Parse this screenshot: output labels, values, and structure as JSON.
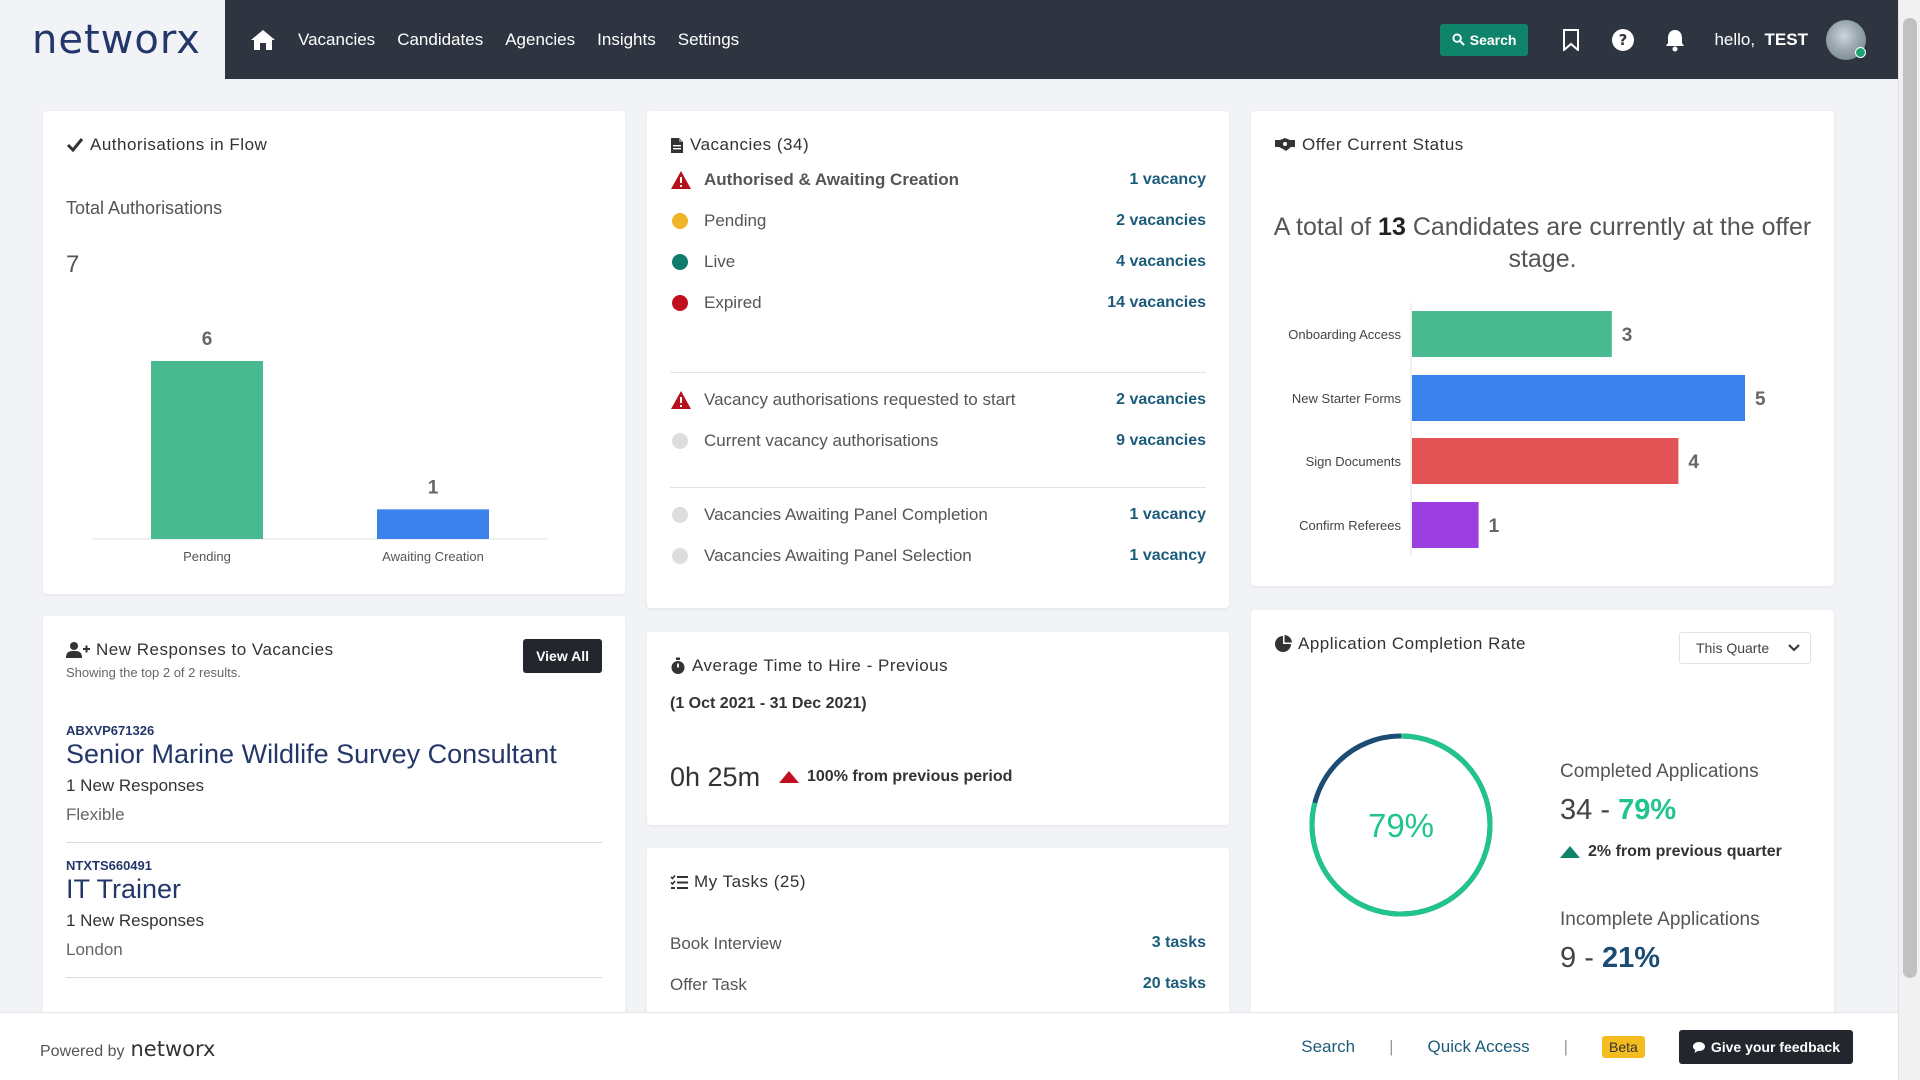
{
  "app": {
    "logo": "networx"
  },
  "nav": {
    "home_icon": "home-icon",
    "items": [
      "Vacancies",
      "Candidates",
      "Agencies",
      "Insights",
      "Settings"
    ]
  },
  "header": {
    "search_label": "Search",
    "greeting": "hello,",
    "user": "TEST"
  },
  "authorisations": {
    "title": "Authorisations in Flow",
    "total_label": "Total Authorisations",
    "total_value": "7",
    "chart_data": {
      "type": "bar",
      "categories": [
        "Pending",
        "Awaiting Creation"
      ],
      "values": [
        6,
        1
      ],
      "colors": [
        "#49b990",
        "#3b82ec"
      ],
      "ylim": [
        0,
        6.5
      ]
    }
  },
  "vacancies": {
    "title": "Vacancies (34)",
    "rows": [
      {
        "label": "Authorised & Awaiting Creation",
        "value": "1 vacancy",
        "icon": "warning-icon",
        "bold": true
      },
      {
        "label": "Pending",
        "value": "2 vacancies",
        "color": "#f0b429"
      },
      {
        "label": "Live",
        "value": "4 vacancies",
        "color": "#0f7b6c"
      },
      {
        "label": "Expired",
        "value": "14 vacancies",
        "color": "#c0101f"
      },
      {
        "label": "Vacancy authorisations requested to start",
        "value": "2 vacancies",
        "icon": "warning-icon"
      },
      {
        "label": "Current vacancy authorisations",
        "value": "9 vacancies",
        "color": "#dddddd"
      },
      {
        "label": "Vacancies Awaiting Panel Completion",
        "value": "1 vacancy",
        "color": "#dddddd"
      },
      {
        "label": "Vacancies Awaiting Panel Selection",
        "value": "1 vacancy",
        "color": "#dddddd"
      }
    ]
  },
  "offer": {
    "title": "Offer Current Status",
    "summary_prefix": "A total of",
    "summary_count": "13",
    "summary_suffix": "Candidates are currently at the offer stage.",
    "chart_data": {
      "type": "bar",
      "orientation": "horizontal",
      "categories": [
        "Onboarding Access",
        "New Starter Forms",
        "Sign Documents",
        "Confirm Referees"
      ],
      "values": [
        3,
        5,
        4,
        1
      ],
      "colors": [
        "#49b990",
        "#3b82ec",
        "#e35355",
        "#9b3fe0"
      ],
      "xlim": [
        0,
        5
      ]
    }
  },
  "responses": {
    "title": "New Responses to Vacancies",
    "subtitle": "Showing the top 2 of 2 results.",
    "view_all": "View All",
    "items": [
      {
        "ref": "ABXVP671326",
        "title": "Senior Marine Wildlife Survey Consultant",
        "count": "1 New Responses",
        "location": "Flexible"
      },
      {
        "ref": "NTXTS660491",
        "title": "IT Trainer",
        "count": "1 New Responses",
        "location": "London"
      }
    ]
  },
  "time_to_hire": {
    "title": "Average Time to Hire - Previous",
    "range": "(1 Oct 2021 - 31 Dec 2021)",
    "value": "0h 25m",
    "change": "100% from previous period",
    "change_direction": "up",
    "change_color": "#c0101f"
  },
  "tasks": {
    "title": "My Tasks (25)",
    "rows": [
      {
        "label": "Book Interview",
        "value": "3 tasks"
      },
      {
        "label": "Offer Task",
        "value": "20 tasks"
      }
    ]
  },
  "completion": {
    "title": "Application Completion Rate",
    "period": "This Quarte",
    "rate_label": "79%",
    "rate": 0.79,
    "completed_label": "Completed Applications",
    "completed_count": "34",
    "completed_pct": "79%",
    "change": "2% from previous quarter",
    "change_color": "#10846a",
    "incomplete_label": "Incomplete Applications",
    "incomplete_count": "9",
    "incomplete_pct": "21%",
    "dash": "-"
  },
  "footer": {
    "powered_by": "Powered by",
    "logo": "networx",
    "search": "Search",
    "quick_access": "Quick Access",
    "separator": "|",
    "beta": "Beta",
    "feedback": "Give your feedback"
  }
}
